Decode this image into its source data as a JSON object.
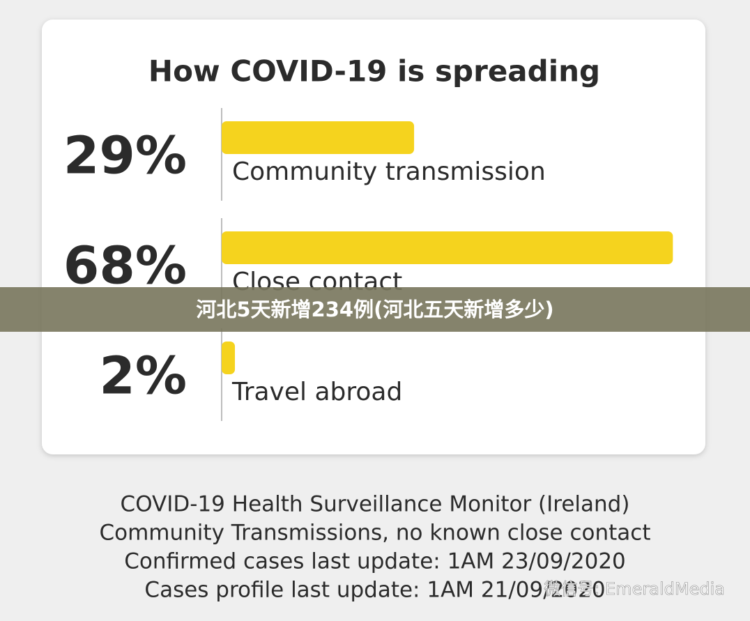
{
  "chart_data": {
    "type": "bar",
    "title": "How COVID-19 is spreading",
    "categories": [
      "Community transmission",
      "Close contact",
      "Travel abroad"
    ],
    "values": [
      29,
      68,
      2
    ],
    "value_labels": [
      "29%",
      "68%",
      "2%"
    ],
    "color": "#f5d31e"
  },
  "footer": {
    "lines": [
      "COVID-19 Health Surveillance Monitor (Ireland)",
      "Community Transmissions, no known close contact",
      "Confirmed cases last update:  1AM 23/09/2020",
      "Cases profile last update:  1AM 21/09/2020"
    ]
  },
  "banner": {
    "text": "河北5天新增234例(河北五天新增多少)"
  },
  "watermark": {
    "text": "微信号: EmeraldMedia"
  }
}
